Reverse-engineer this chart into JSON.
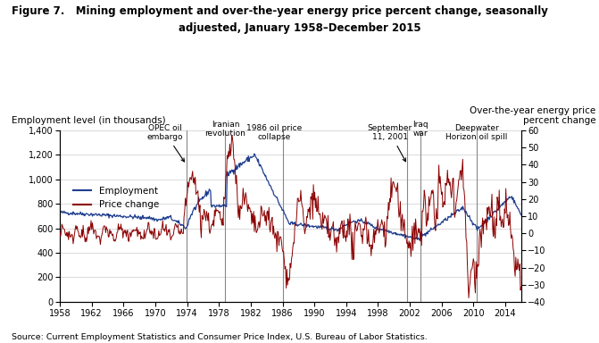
{
  "title_line1": "Figure 7.   Mining employment and over-the-year energy price percent change, seasonally",
  "title_line2": "adjuested, January 1958–December 2015",
  "source": "Source: Current Employment Statistics and Consumer Price Index, U.S. Bureau of Labor Statistics.",
  "ylabel_left": "Employment level (in thousands)",
  "ylabel_right": "Over-the-year energy price\npercent change",
  "ylim_left": [
    0,
    1400
  ],
  "ylim_right": [
    -40,
    60
  ],
  "xlim": [
    1958,
    2016
  ],
  "yticks_left": [
    0,
    200,
    400,
    600,
    800,
    1000,
    1200,
    1400
  ],
  "yticks_right": [
    -40,
    -30,
    -20,
    -10,
    0,
    10,
    20,
    30,
    40,
    50,
    60
  ],
  "xticks": [
    1958,
    1962,
    1966,
    1970,
    1974,
    1978,
    1982,
    1986,
    1990,
    1994,
    1998,
    2002,
    2006,
    2010,
    2014
  ],
  "employment_color": "#1f3f8f",
  "price_color": "#8b0000",
  "grid_color": "#cccccc",
  "vline_color": "#888888",
  "vlines": [
    1973.9,
    1978.8,
    1986.0,
    2001.7,
    2003.3,
    2010.4
  ],
  "background_color": "#ffffff",
  "fig_width": 6.71,
  "fig_height": 3.84,
  "dpi": 100
}
